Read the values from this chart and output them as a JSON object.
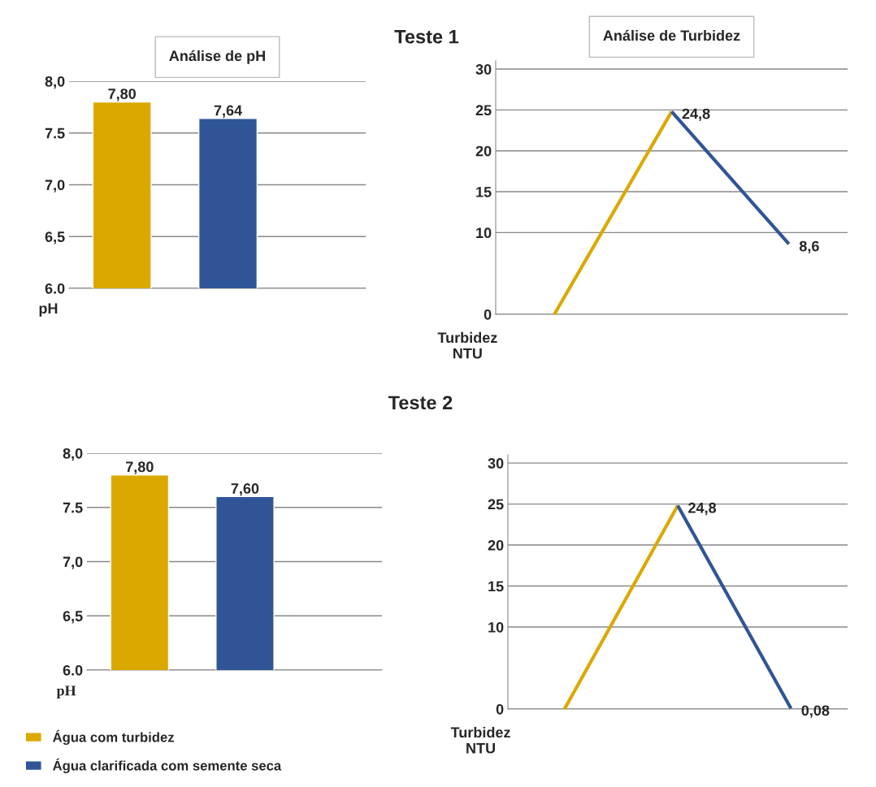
{
  "chart_data": [
    {
      "type": "bar",
      "title": "Análise de pH",
      "annotations": [
        "Teste 1"
      ],
      "ylabel": "pH",
      "categories": [
        null,
        null
      ],
      "series": [
        {
          "color": "#dba800",
          "values": [
            7.8,
            null
          ],
          "value_labels": [
            "7,80",
            null
          ]
        },
        {
          "color": "#2f5597",
          "values": [
            null,
            7.64
          ],
          "value_labels": [
            null,
            "7,64"
          ]
        }
      ],
      "ylim": [
        6.0,
        8.0
      ],
      "yticks": [
        {
          "value": 6.0,
          "label": "6.0"
        },
        {
          "value": 6.5,
          "label": "6,5"
        },
        {
          "value": 7.0,
          "label": "7,0"
        },
        {
          "value": 7.5,
          "label": "7.5"
        },
        {
          "value": 8.0,
          "label": "8,0"
        }
      ],
      "grid": "y",
      "tick_labels": "y"
    },
    {
      "type": "line",
      "title": "Análise de Turbidez",
      "ylabel": "Turbidez\nNTU",
      "categories": [
        null,
        null,
        null
      ],
      "series": [
        {
          "color": "#dba800",
          "values": [
            0,
            24.8,
            null
          ]
        },
        {
          "color": "#2f5597",
          "values": [
            null,
            24.8,
            8.6
          ],
          "value_labels": [
            null,
            "24,8",
            "8,6"
          ]
        }
      ],
      "ylim": [
        0,
        31
      ],
      "yticks": [
        0,
        10,
        15,
        20,
        25,
        30
      ],
      "grid": "y",
      "tick_labels": "y",
      "marker": "none"
    },
    {
      "type": "bar",
      "annotations": [
        "Teste 2"
      ],
      "ylabel": "pH",
      "categories": [
        null,
        null
      ],
      "series": [
        {
          "name": "Água com turbidez",
          "color": "#dba800",
          "values": [
            7.8,
            null
          ],
          "value_labels": [
            "7,80",
            null
          ]
        },
        {
          "name": "Água clarificada com semente seca",
          "color": "#2f5597",
          "values": [
            null,
            7.6
          ],
          "value_labels": [
            null,
            "7,60"
          ]
        }
      ],
      "ylim": [
        6.0,
        8.0
      ],
      "yticks": [
        {
          "value": 6.0,
          "label": "6.0"
        },
        {
          "value": 6.5,
          "label": "6,5"
        },
        {
          "value": 7.0,
          "label": "7,0"
        },
        {
          "value": 7.5,
          "label": "7.5"
        },
        {
          "value": 8.0,
          "label": "8,0"
        }
      ],
      "grid": "y",
      "tick_labels": "y",
      "legend": "bottom"
    },
    {
      "type": "line",
      "ylabel": "Turbidez\nNTU",
      "categories": [
        null,
        null,
        null
      ],
      "series": [
        {
          "color": "#dba800",
          "values": [
            0,
            24.8,
            null
          ]
        },
        {
          "color": "#2f5597",
          "values": [
            null,
            24.8,
            0.08
          ],
          "value_labels": [
            null,
            "24,8",
            "0,08"
          ]
        }
      ],
      "ylim": [
        0,
        31
      ],
      "yticks": [
        0,
        10,
        15,
        20,
        25,
        30
      ],
      "grid": "y",
      "tick_labels": "y",
      "marker": "none"
    }
  ]
}
